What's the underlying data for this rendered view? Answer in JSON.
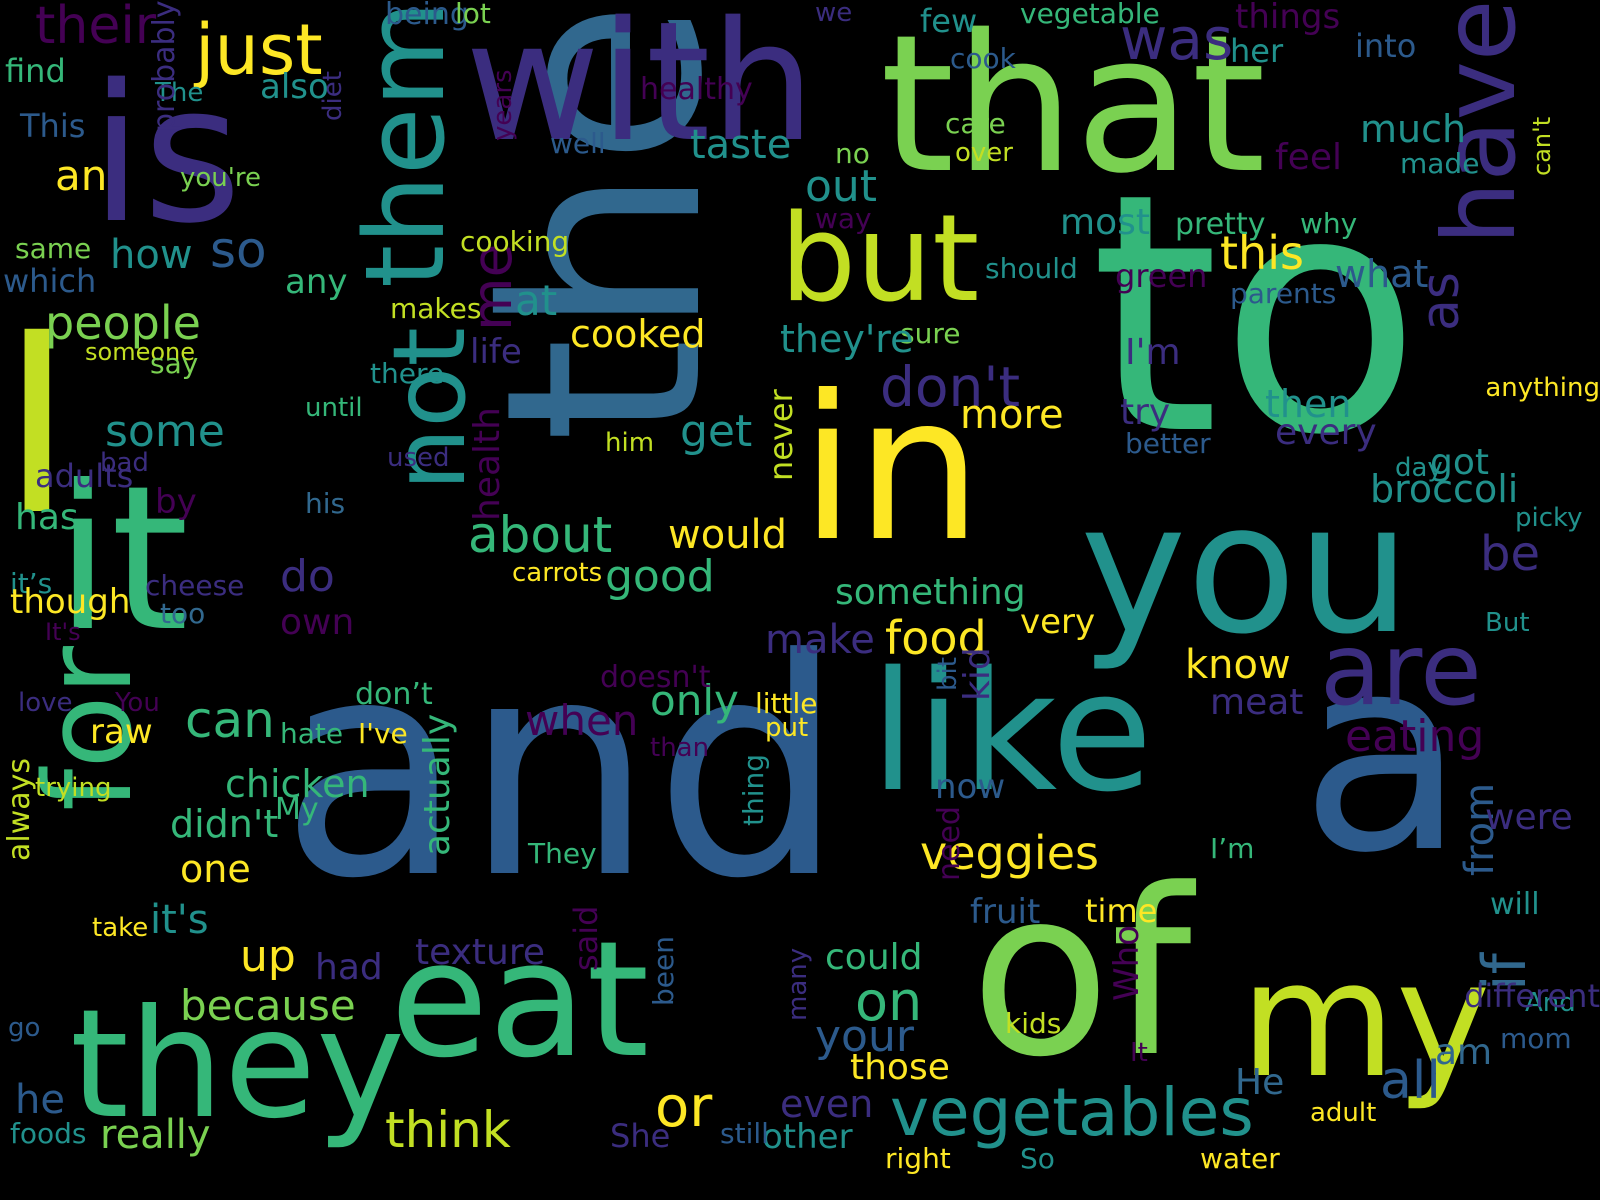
{
  "palette": {
    "background": "#000000",
    "dark_purple": "#440154",
    "indigo": "#3b2d7f",
    "blue": "#31688e",
    "steel": "#2c5a8c",
    "teal": "#21918c",
    "green": "#35b779",
    "light_green": "#7ad151",
    "yellow_green": "#c2df23",
    "yellow": "#fde725"
  },
  "words": [
    "and",
    "to",
    "I",
    "the",
    "a",
    "that",
    "is",
    "it",
    "with",
    "of",
    "in",
    "you",
    "eat",
    "like",
    "my",
    "they",
    "for",
    "them",
    "but",
    "have",
    "not",
    "are",
    "just",
    "was",
    "their",
    "vegetables",
    "veggies",
    "people",
    "don't",
    "food",
    "about",
    "this",
    "on",
    "some",
    "would",
    "so",
    "or",
    "think",
    "really",
    "because",
    "can",
    "me",
    "taste",
    "be",
    "at",
    "up",
    "do",
    "as",
    "out",
    "cooked",
    "an",
    "good",
    "get",
    "more",
    "how",
    "all",
    "he",
    "it's",
    "make",
    "most",
    "eating",
    "one",
    "your",
    "if",
    "from",
    "what",
    "only",
    "when",
    "much",
    "then",
    "know",
    "broccoli",
    "something",
    "also",
    "very",
    "could",
    "even",
    "other",
    "those",
    "time",
    "always",
    "any",
    "never",
    "meat",
    "texture",
    "actually",
    "fruit",
    "things",
    "into",
    "her",
    "life",
    "try",
    "I'm",
    "had",
    "She",
    "been",
    "will",
    "said",
    "feel",
    "no",
    "This",
    "The",
    "find",
    "being",
    "lot",
    "vegetable",
    "few",
    "cook",
    "care",
    "over",
    "made",
    "well",
    "healthy",
    "we",
    "you're",
    "same",
    "which",
    "someone",
    "say",
    "makes",
    "cooking",
    "years",
    "diet",
    "probably",
    "way",
    "pretty",
    "why",
    "parents",
    "should",
    "green",
    "can't",
    "anything",
    "sure",
    "they're",
    "there",
    "until",
    "him",
    "used",
    "bad",
    "adults",
    "by",
    "has",
    "his",
    "it’s",
    "cheese",
    "though",
    "too",
    "It's",
    "own",
    "love",
    "You",
    "doesn't",
    "little",
    "put",
    "bit",
    "kid",
    "than",
    "raw",
    "hate",
    "I've",
    "chicken",
    "My",
    "trying",
    "didn't",
    "They",
    "thing",
    "now",
    "were",
    "I’m",
    "take",
    "carrots",
    "got",
    "day",
    "every",
    "better",
    "But",
    "picky",
    "need",
    "go",
    "Who",
    "kids",
    "It",
    "many",
    "mom",
    "And",
    "adult",
    "He",
    "am",
    "foods",
    "still",
    "right",
    "So",
    "water",
    "health",
    "different",
    "don’t",
    "If",
    "i"
  ]
}
